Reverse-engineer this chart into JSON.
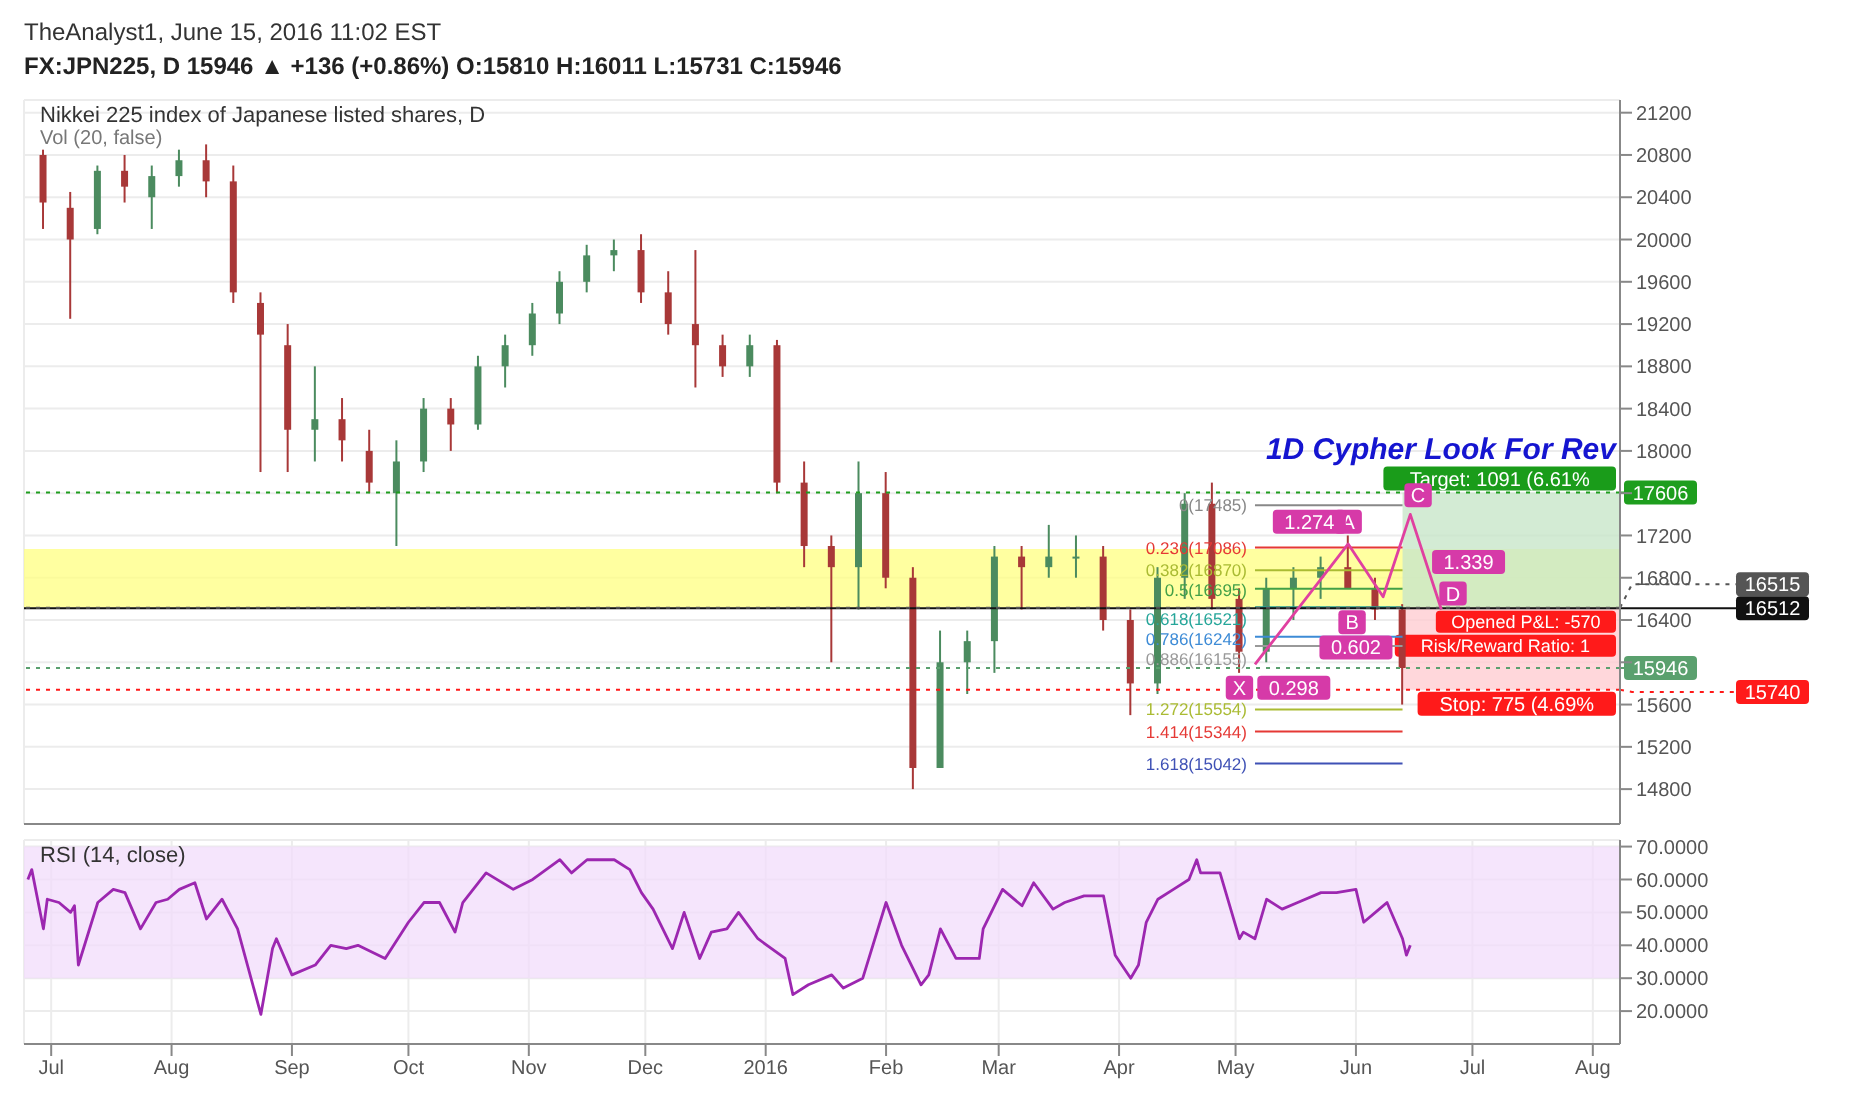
{
  "chart_data": [
    {
      "type": "candlestick",
      "title": "Nikkei 225 index of Japanese listed shares, D",
      "annotations": [
        "TheAnalyst1, June 15, 2016 11:02 EST",
        "FX:JPN225, D 15946 ▲ +136 (+0.86%) O:15810 H:16011 L:15731 C:15946",
        "Vol (20, false)",
        "1D Cypher Look For Rev",
        "Opened P&L: -570",
        "Risk/Reward Ratio: 1",
        {
          "text": "X",
          "x": "2016-05-02",
          "y": 15760
        },
        {
          "text": "A",
          "x": "2016-05-30",
          "y": 17330
        },
        {
          "text": "1.274",
          "x": "2016-05-20",
          "y": 17330
        },
        {
          "text": "B",
          "x": "2016-05-31",
          "y": 16380
        },
        {
          "text": "1.339",
          "x": "2016-06-30",
          "y": 16950
        },
        {
          "text": "C",
          "x": "2016-06-17",
          "y": 17580
        },
        {
          "text": "D",
          "x": "2016-06-26",
          "y": 16650
        },
        {
          "text": "0.298",
          "x": "2016-05-16",
          "y": 15760
        },
        {
          "text": "0.602",
          "x": "2016-06-01",
          "y": 16140
        }
      ],
      "x": [
        "2015-06-29",
        "2015-07-06",
        "2015-07-13",
        "2015-07-20",
        "2015-07-27",
        "2015-08-03",
        "2015-08-10",
        "2015-08-17",
        "2015-08-24",
        "2015-08-31",
        "2015-09-07",
        "2015-09-14",
        "2015-09-21",
        "2015-09-28",
        "2015-10-05",
        "2015-10-12",
        "2015-10-19",
        "2015-10-26",
        "2015-11-02",
        "2015-11-09",
        "2015-11-16",
        "2015-11-23",
        "2015-11-30",
        "2015-12-07",
        "2015-12-14",
        "2015-12-21",
        "2015-12-28",
        "2016-01-04",
        "2016-01-11",
        "2016-01-18",
        "2016-01-25",
        "2016-02-01",
        "2016-02-08",
        "2016-02-15",
        "2016-02-22",
        "2016-02-29",
        "2016-03-07",
        "2016-03-14",
        "2016-03-21",
        "2016-03-28",
        "2016-04-04",
        "2016-04-11",
        "2016-04-18",
        "2016-04-25",
        "2016-05-02",
        "2016-05-09",
        "2016-05-16",
        "2016-05-23",
        "2016-05-30",
        "2016-06-06",
        "2016-06-13"
      ],
      "ohlc": [
        [
          20800,
          20850,
          20100,
          20350
        ],
        [
          20300,
          20450,
          19250,
          20000
        ],
        [
          20100,
          20700,
          20050,
          20650
        ],
        [
          20650,
          20800,
          20350,
          20500
        ],
        [
          20400,
          20700,
          20100,
          20600
        ],
        [
          20600,
          20850,
          20500,
          20750
        ],
        [
          20750,
          20900,
          20400,
          20550
        ],
        [
          20550,
          20700,
          19400,
          19500
        ],
        [
          19400,
          19500,
          17800,
          19100
        ],
        [
          19000,
          19200,
          17800,
          18200
        ],
        [
          18200,
          18800,
          17900,
          18300
        ],
        [
          18300,
          18500,
          17900,
          18100
        ],
        [
          18000,
          18200,
          17600,
          17700
        ],
        [
          17600,
          18100,
          17100,
          17900
        ],
        [
          17900,
          18500,
          17800,
          18400
        ],
        [
          18400,
          18500,
          18000,
          18250
        ],
        [
          18250,
          18900,
          18200,
          18800
        ],
        [
          18800,
          19100,
          18600,
          19000
        ],
        [
          19000,
          19400,
          18900,
          19300
        ],
        [
          19300,
          19700,
          19200,
          19600
        ],
        [
          19600,
          19950,
          19500,
          19850
        ],
        [
          19850,
          20000,
          19700,
          19900
        ],
        [
          19900,
          20050,
          19400,
          19500
        ],
        [
          19500,
          19700,
          19100,
          19200
        ],
        [
          19200,
          19900,
          18600,
          19000
        ],
        [
          19000,
          19100,
          18700,
          18800
        ],
        [
          18800,
          19100,
          18700,
          19000
        ],
        [
          19000,
          19050,
          17600,
          17700
        ],
        [
          17700,
          17900,
          16900,
          17100
        ],
        [
          17100,
          17200,
          16000,
          16900
        ],
        [
          16900,
          17900,
          16500,
          17600
        ],
        [
          17600,
          17800,
          16700,
          16800
        ],
        [
          16800,
          16900,
          14800,
          15000
        ],
        [
          15000,
          16300,
          15000,
          16000
        ],
        [
          16000,
          16300,
          15700,
          16200
        ],
        [
          16200,
          17100,
          15900,
          17000
        ],
        [
          17000,
          17100,
          16500,
          16900
        ],
        [
          16900,
          17300,
          16800,
          17000
        ],
        [
          17000,
          17200,
          16800,
          17000
        ],
        [
          17000,
          17100,
          16300,
          16400
        ],
        [
          16400,
          16500,
          15500,
          15800
        ],
        [
          15800,
          16900,
          15700,
          16800
        ],
        [
          16800,
          17600,
          16600,
          17500
        ],
        [
          17500,
          17700,
          16500,
          16600
        ],
        [
          16600,
          16700,
          15900,
          16100
        ],
        [
          16100,
          16800,
          16000,
          16700
        ],
        [
          16700,
          16900,
          16400,
          16800
        ],
        [
          16800,
          17000,
          16600,
          16900
        ],
        [
          16900,
          17200,
          16700,
          16700
        ],
        [
          16700,
          16800,
          16400,
          16500
        ],
        [
          16500,
          16550,
          15600,
          15946
        ]
      ],
      "series": [
        {
          "type": "line",
          "color": "#e040a0",
          "marker": "none",
          "x": [
            "2016-05-06",
            "2016-05-30",
            "2016-06-08",
            "2016-06-15",
            "2016-06-23"
          ],
          "values": [
            15980,
            17120,
            16620,
            17400,
            16500
          ]
        }
      ],
      "xlim": [
        "2015-06-24",
        "2016-08-08"
      ],
      "ylim": [
        14470,
        21320
      ],
      "xticks": [
        {
          "value": "2015-07-01",
          "label": null
        },
        {
          "value": "2015-08-01",
          "label": null
        },
        {
          "value": "2015-09-01",
          "label": null
        },
        {
          "value": "2015-10-01",
          "label": null
        },
        {
          "value": "2015-11-01",
          "label": null
        },
        {
          "value": "2015-12-01",
          "label": null
        },
        {
          "value": "2016-01-01",
          "label": null
        },
        {
          "value": "2016-02-01",
          "label": null
        },
        {
          "value": "2016-03-01",
          "label": null
        },
        {
          "value": "2016-04-01",
          "label": null
        },
        {
          "value": "2016-05-01",
          "label": null
        },
        {
          "value": "2016-06-01",
          "label": null
        },
        {
          "value": "2016-07-01",
          "label": null
        },
        {
          "value": "2016-08-01",
          "label": null
        }
      ],
      "yticks": [
        14800,
        15200,
        15600,
        {
          "value": 16000,
          "label": null
        },
        16400,
        16800,
        17200,
        {
          "value": 17600,
          "label": null
        },
        18000,
        18400,
        18800,
        19200,
        19600,
        20000,
        20400,
        20800,
        21200
      ],
      "grid": true,
      "tick_labels": "y",
      "ref_lines": [
        {
          "axis": "y",
          "value": 17485,
          "label": "0(17485)",
          "color": "#888888"
        },
        {
          "axis": "y",
          "value": 17086,
          "label": "0.236(17086)",
          "color": "#e53935"
        },
        {
          "axis": "y",
          "value": 16870,
          "label": "0.382(16870)",
          "color": "#aabb33"
        },
        {
          "axis": "y",
          "value": 16695,
          "label": "0.5(16695)",
          "color": "#43a047"
        },
        {
          "axis": "y",
          "value": 16521,
          "label": "0.618(16521)",
          "color": "#26a69a"
        },
        {
          "axis": "y",
          "value": 16242,
          "label": "0.786(16242)",
          "color": "#3d8bd6"
        },
        {
          "axis": "y",
          "value": 16155,
          "label": "0.886(16155)",
          "color": "#999999"
        },
        {
          "axis": "y",
          "value": 15554,
          "label": "1.272(15554)",
          "color": "#aabb33"
        },
        {
          "axis": "y",
          "value": 15344,
          "label": "1.414(15344)",
          "color": "#e53935"
        },
        {
          "axis": "y",
          "value": 15042,
          "label": "1.618(15042)",
          "color": "#3f51b5"
        },
        {
          "axis": "y",
          "value": 17606,
          "label": "17606",
          "color": "#1e9e1e",
          "line_style": "dotted"
        },
        {
          "axis": "y",
          "value": 16512,
          "label": "16512",
          "color": "#111111",
          "line_style": "solid"
        },
        {
          "axis": "y",
          "value": 16515,
          "label": "16515",
          "color": "#555555",
          "line_style": "dotted"
        },
        {
          "axis": "y",
          "value": 15946,
          "label": "15946",
          "color": "#5aa06e",
          "line_style": "dotted"
        },
        {
          "axis": "y",
          "value": 15740,
          "label": "15740",
          "color": "#ff1a1a",
          "line_style": "dotted"
        }
      ],
      "bands": [
        {
          "axis": "y",
          "from": 16518,
          "to": 17073,
          "color": "#ffff80"
        },
        {
          "axis": "y",
          "from": 16515,
          "to": 17606,
          "label": "Target: 1091 (6.61%",
          "color": "#c8e6c9"
        },
        {
          "axis": "y",
          "from": 15740,
          "to": 16515,
          "label": "Stop: 775 (4.69%",
          "color": "#ffcdd2"
        }
      ]
    },
    {
      "type": "line",
      "title": "RSI (14, close)",
      "x": [
        "2015-06-25",
        "2015-06-26",
        "2015-06-29",
        "2015-06-30",
        "2015-07-03",
        "2015-07-06",
        "2015-07-07",
        "2015-07-08",
        "2015-07-13",
        "2015-07-17",
        "2015-07-20",
        "2015-07-24",
        "2015-07-28",
        "2015-07-31",
        "2015-08-03",
        "2015-08-07",
        "2015-08-10",
        "2015-08-14",
        "2015-08-18",
        "2015-08-24",
        "2015-08-27",
        "2015-08-28",
        "2015-09-01",
        "2015-09-07",
        "2015-09-11",
        "2015-09-15",
        "2015-09-18",
        "2015-09-25",
        "2015-10-01",
        "2015-10-05",
        "2015-10-09",
        "2015-10-13",
        "2015-10-15",
        "2015-10-21",
        "2015-10-28",
        "2015-11-02",
        "2015-11-09",
        "2015-11-12",
        "2015-11-16",
        "2015-11-23",
        "2015-11-27",
        "2015-11-30",
        "2015-12-03",
        "2015-12-08",
        "2015-12-11",
        "2015-12-15",
        "2015-12-18",
        "2015-12-22",
        "2015-12-25",
        "2015-12-30",
        "2016-01-06",
        "2016-01-08",
        "2016-01-12",
        "2016-01-18",
        "2016-01-21",
        "2016-01-26",
        "2016-02-01",
        "2016-02-05",
        "2016-02-10",
        "2016-02-12",
        "2016-02-15",
        "2016-02-19",
        "2016-02-25",
        "2016-02-26",
        "2016-03-02",
        "2016-03-07",
        "2016-03-10",
        "2016-03-15",
        "2016-03-18",
        "2016-03-23",
        "2016-03-28",
        "2016-03-31",
        "2016-04-04",
        "2016-04-06",
        "2016-04-08",
        "2016-04-11",
        "2016-04-15",
        "2016-04-19",
        "2016-04-21",
        "2016-04-22",
        "2016-04-27",
        "2016-05-02",
        "2016-05-03",
        "2016-05-06",
        "2016-05-09",
        "2016-05-13",
        "2016-05-17",
        "2016-05-23",
        "2016-05-27",
        "2016-06-01",
        "2016-06-03",
        "2016-06-07",
        "2016-06-09",
        "2016-06-13",
        "2016-06-14",
        "2016-06-15"
      ],
      "series": [
        {
          "color": "#9c27b0",
          "values": [
            60,
            63,
            45,
            54,
            53,
            50,
            52,
            34,
            53,
            57,
            56,
            45,
            53,
            54,
            57,
            59,
            48,
            54,
            45,
            19,
            39,
            42,
            31,
            34,
            40,
            39,
            40,
            36,
            47,
            53,
            53,
            44,
            53,
            62,
            57,
            60,
            66,
            62,
            66,
            66,
            63,
            56,
            51,
            39,
            50,
            36,
            44,
            45,
            50,
            42,
            36,
            25,
            28,
            31,
            27,
            30,
            53,
            40,
            28,
            31,
            45,
            36,
            36,
            45,
            57,
            52,
            59,
            51,
            53,
            55,
            55,
            37,
            30,
            34,
            47,
            54,
            57,
            60,
            66,
            62,
            62,
            42,
            44,
            42,
            54,
            51,
            53,
            56,
            56,
            57,
            47,
            51,
            53,
            42,
            37,
            40
          ]
        }
      ],
      "xlim": [
        "2015-06-24",
        "2016-08-08"
      ],
      "ylim": [
        10,
        72
      ],
      "xticks": [
        {
          "value": "2015-07-01",
          "label": "Jul"
        },
        {
          "value": "2015-08-01",
          "label": "Aug"
        },
        {
          "value": "2015-09-01",
          "label": "Sep"
        },
        {
          "value": "2015-10-01",
          "label": "Oct"
        },
        {
          "value": "2015-11-01",
          "label": "Nov"
        },
        {
          "value": "2015-12-01",
          "label": "Dec"
        },
        {
          "value": "2016-01-01",
          "label": "2016"
        },
        {
          "value": "2016-02-01",
          "label": "Feb"
        },
        {
          "value": "2016-03-01",
          "label": "Mar"
        },
        {
          "value": "2016-04-01",
          "label": "Apr"
        },
        {
          "value": "2016-05-01",
          "label": "May"
        },
        {
          "value": "2016-06-01",
          "label": "Jun"
        },
        {
          "value": "2016-07-01",
          "label": "Jul"
        },
        {
          "value": "2016-08-01",
          "label": "Aug"
        }
      ],
      "yticks": [
        {
          "value": 20,
          "label": "20.0000"
        },
        {
          "value": 30,
          "label": "30.0000"
        },
        {
          "value": 40,
          "label": "40.0000"
        },
        {
          "value": 50,
          "label": "50.0000"
        },
        {
          "value": 60,
          "label": "60.0000"
        },
        {
          "value": 70,
          "label": "70.0000"
        }
      ],
      "grid": true,
      "bands": [
        {
          "axis": "y",
          "from": 30,
          "to": 70,
          "color": "#f1dcfb"
        }
      ]
    }
  ]
}
